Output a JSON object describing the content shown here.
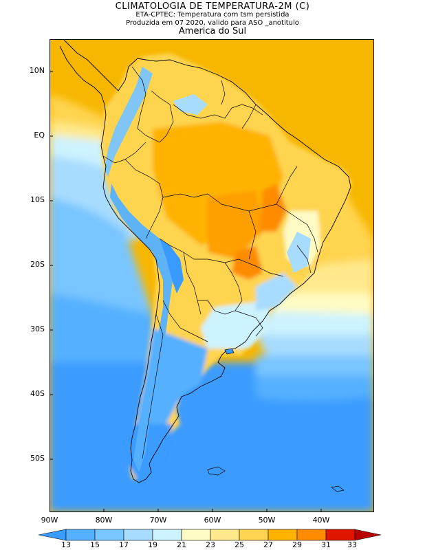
{
  "header": {
    "title": "CLIMATOLOGIA DE TEMPERATURA-2M (C)",
    "subtitle1": "ETA-CPTEC: Temperatura com tsm persistida",
    "subtitle2": "Produzida em 07 2020, valido para ASO _anotitulo",
    "region": "America do Sul"
  },
  "map": {
    "lat_labels": [
      "10N",
      "EQ",
      "10S",
      "20S",
      "30S",
      "40S",
      "50S"
    ],
    "lon_labels": [
      "90W",
      "80W",
      "70W",
      "60W",
      "50W",
      "40W"
    ],
    "ocean_base_color": "#f7b600"
  },
  "colorbar": {
    "labels": [
      "13",
      "15",
      "17",
      "19",
      "21",
      "23",
      "25",
      "27",
      "29",
      "31",
      "33"
    ],
    "colors": [
      "#3a9bff",
      "#55b0ff",
      "#78c5ff",
      "#a8dcff",
      "#cdf3ff",
      "#fffbc4",
      "#ffe98c",
      "#ffd450",
      "#ffb300",
      "#ff8c00",
      "#ff5a00",
      "#e01500",
      "#b80000"
    ]
  }
}
